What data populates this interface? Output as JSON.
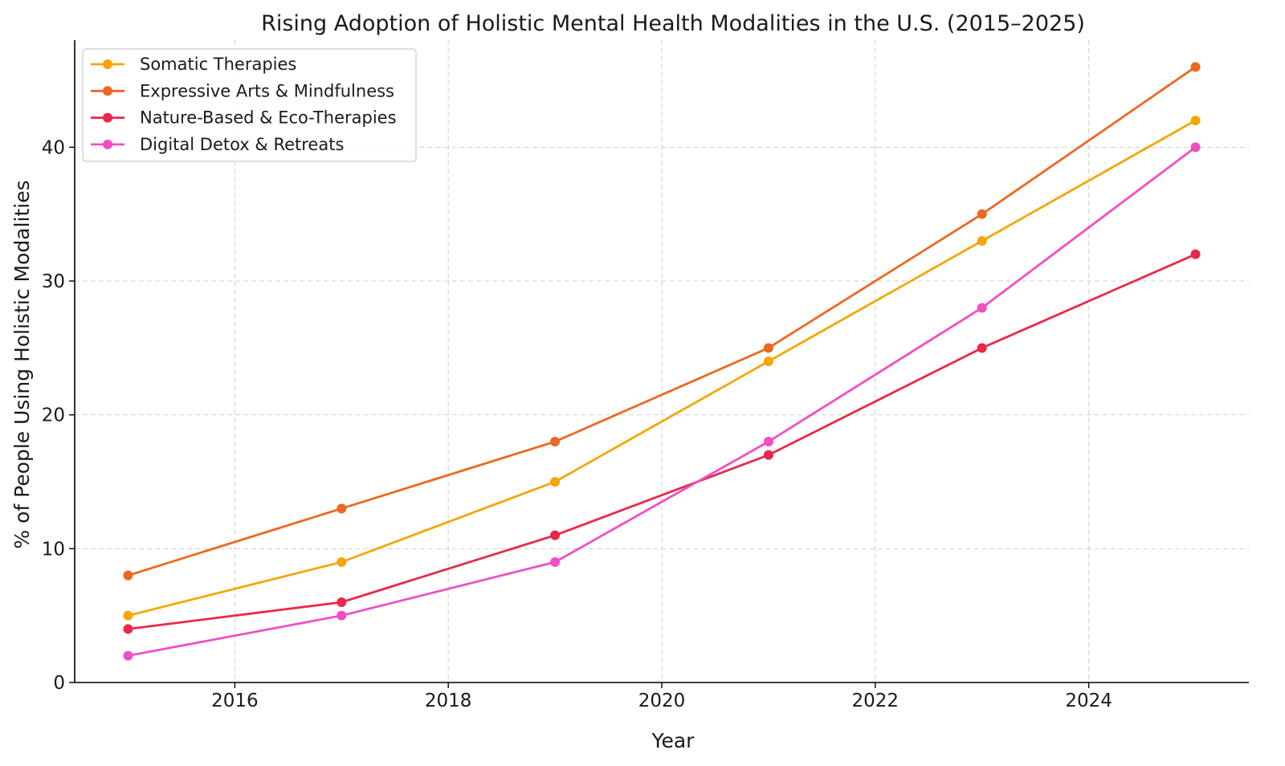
{
  "chart_data": {
    "type": "line",
    "title": "Rising Adoption of Holistic Mental Health Modalities in the U.S. (2015–2025)",
    "xlabel": "Year",
    "ylabel": "% of People Using Holistic Modalities",
    "x": [
      2015,
      2017,
      2019,
      2021,
      2023,
      2025
    ],
    "xlim": [
      2014.5,
      2025.5
    ],
    "ylim": [
      0,
      48
    ],
    "xticks": [
      2016,
      2018,
      2020,
      2022,
      2024
    ],
    "yticks": [
      0,
      10,
      20,
      30,
      40
    ],
    "grid": true,
    "legend_position": "top-left",
    "series": [
      {
        "name": "Somatic Therapies",
        "color": "#f6a609",
        "values": [
          5,
          9,
          15,
          24,
          33,
          42
        ]
      },
      {
        "name": "Expressive Arts & Mindfulness",
        "color": "#ec6822",
        "values": [
          8,
          13,
          18,
          25,
          35,
          46
        ]
      },
      {
        "name": "Nature-Based & Eco-Therapies",
        "color": "#e8294b",
        "values": [
          4,
          6,
          11,
          17,
          25,
          32
        ]
      },
      {
        "name": "Digital Detox & Retreats",
        "color": "#f04fc4",
        "values": [
          2,
          5,
          9,
          18,
          28,
          40
        ]
      }
    ]
  }
}
